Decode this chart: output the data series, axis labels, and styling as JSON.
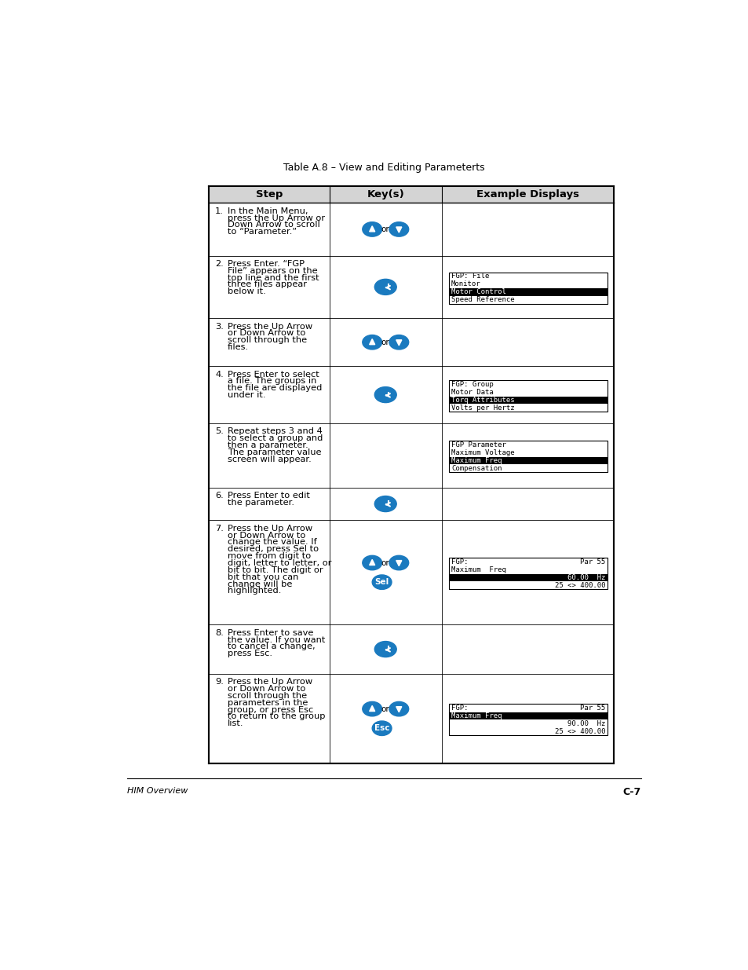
{
  "title": "Table A.8 – View and Editing Parameterts",
  "footer_left": "HIM Overview",
  "footer_right": "C-7",
  "bg_color": "#ffffff",
  "blue_color": "#1a7abf",
  "steps": [
    {
      "num": "1.",
      "text": "In the Main Menu,\npress the Up Arrow or\nDown Arrow to scroll\nto “Parameter.”",
      "key_type": "up_down_or",
      "display": null
    },
    {
      "num": "2.",
      "text": "Press Enter. “FGP\nFile” appears on the\ntop line and the first\nthree files appear\nbelow it.",
      "key_type": "enter",
      "display": {
        "type": "list",
        "lines": [
          "FGP: File",
          "Monitor",
          "Motor Control",
          "Speed Reference"
        ],
        "highlight": 2
      }
    },
    {
      "num": "3.",
      "text": "Press the Up Arrow\nor Down Arrow to\nscroll through the\nfiles.",
      "key_type": "up_down_or",
      "display": null
    },
    {
      "num": "4.",
      "text": "Press Enter to select\na file. The groups in\nthe file are displayed\nunder it.",
      "key_type": "enter",
      "display": {
        "type": "list",
        "lines": [
          "FGP: Group",
          "Motor Data",
          "Torq Attributes",
          "Volts per Hertz"
        ],
        "highlight": 2
      }
    },
    {
      "num": "5.",
      "text": "Repeat steps 3 and 4\nto select a group and\nthen a parameter.\nThe parameter value\nscreen will appear.",
      "key_type": "none",
      "display": {
        "type": "list",
        "lines": [
          "FGP Parameter",
          "Maximum Voltage",
          "Maximum Freq",
          "Compensation"
        ],
        "highlight": 2
      }
    },
    {
      "num": "6.",
      "text": "Press Enter to edit\nthe parameter.",
      "key_type": "enter",
      "display": null
    },
    {
      "num": "7.",
      "text": "Press the Up Arrow\nor Down Arrow to\nchange the value. If\ndesired, press Sel to\nmove from digit to\ndigit, letter to letter, or\nbit to bit. The digit or\nbit that you can\nchange will be\nhighlighted.",
      "key_type": "up_down_or_sel",
      "display": {
        "type": "value",
        "line1l": "FGP:",
        "line1r": "Par 55",
        "line2": "Maximum  Freq",
        "line3": "60.00  Hz",
        "line4": "25 <> 400.00",
        "highlight_line": 2
      }
    },
    {
      "num": "8.",
      "text": "Press Enter to save\nthe value. If you want\nto cancel a change,\npress Esc.",
      "key_type": "enter",
      "display": null
    },
    {
      "num": "9.",
      "text": "Press the Up Arrow\nor Down Arrow to\nscroll through the\nparameters in the\ngroup, or press Esc\nto return to the group\nlist.",
      "key_type": "up_down_or_esc",
      "display": {
        "type": "value",
        "line1l": "FGP:",
        "line1r": "Par 55",
        "line2": "Maximum Freq",
        "line3": "90.00  Hz",
        "line4": "25 <> 400.00",
        "highlight_line": 1
      }
    }
  ]
}
